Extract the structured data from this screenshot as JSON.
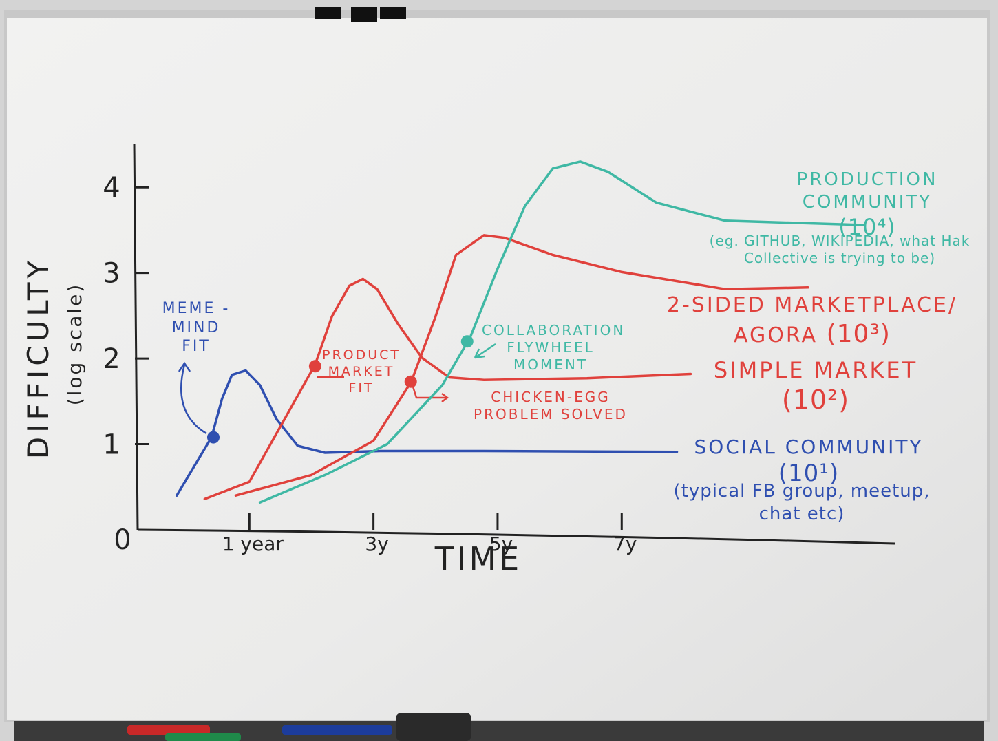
{
  "chart_data": {
    "type": "line",
    "y_label": "DIFFICULTY",
    "y_label_sub": "(log scale)",
    "x_label": "TIME",
    "xlim": [
      -0.8,
      11.4
    ],
    "ylim": [
      0,
      4.5
    ],
    "xticks": [
      {
        "value": 1,
        "label": "1 year"
      },
      {
        "value": 3,
        "label": "3y"
      },
      {
        "value": 5,
        "label": "5y"
      },
      {
        "value": 7,
        "label": "7y"
      }
    ],
    "yticks": [
      0,
      1,
      2,
      3,
      4
    ],
    "series": [
      {
        "name": "SOCIAL COMMUNITY",
        "scale_label": "(10¹)",
        "note": "(typical FB group, meetup, chat etc)",
        "color": "#2f4fb0",
        "x": [
          -0.17,
          0.39,
          0.56,
          0.72,
          0.94,
          1.17,
          1.44,
          1.78,
          2.22,
          3.11,
          4.78,
          7.89
        ],
        "values": [
          0.4,
          1.08,
          1.53,
          1.81,
          1.86,
          1.69,
          1.29,
          0.98,
          0.9,
          0.92,
          0.92,
          0.91
        ]
      },
      {
        "name": "SIMPLE MARKET",
        "scale_label": "(10²)",
        "color": "#e0413c",
        "x": [
          0.28,
          1.0,
          2.06,
          2.33,
          2.61,
          2.83,
          3.06,
          3.39,
          3.78,
          4.22,
          4.78,
          6.44,
          8.11
        ],
        "values": [
          0.36,
          0.56,
          1.93,
          2.49,
          2.85,
          2.93,
          2.81,
          2.41,
          2.01,
          1.78,
          1.75,
          1.77,
          1.82
        ]
      },
      {
        "name": "2-SIDED MARKETPLACE/ AGORA",
        "scale_label": "(10³)",
        "color": "#e0413c",
        "x": [
          0.78,
          2.0,
          3.0,
          3.61,
          4.0,
          4.33,
          4.78,
          5.11,
          5.89,
          7.0,
          8.67,
          10.0
        ],
        "values": [
          0.4,
          0.64,
          1.04,
          1.73,
          2.49,
          3.21,
          3.44,
          3.41,
          3.21,
          3.01,
          2.81,
          2.83
        ]
      },
      {
        "name": "PRODUCTION COMMUNITY",
        "scale_label": "(10⁴)",
        "note": "(eg. GITHUB, WIKIPEDIA, what Hak Collective is trying to be)",
        "color": "#3fb8a4",
        "x": [
          1.17,
          2.22,
          3.22,
          4.11,
          4.56,
          5.0,
          5.44,
          5.89,
          6.33,
          6.78,
          7.56,
          8.67,
          10.89
        ],
        "values": [
          0.32,
          0.64,
          1.0,
          1.69,
          2.25,
          3.05,
          3.78,
          4.22,
          4.3,
          4.18,
          3.82,
          3.61,
          3.56
        ]
      }
    ],
    "annotations": [
      {
        "text": "MEME -MIND FIT",
        "x": 0.42,
        "y": 1.08,
        "color": "#2f4fb0"
      },
      {
        "text": "PRODUCT MARKET FIT",
        "x": 2.06,
        "y": 1.91,
        "color": "#e0413c"
      },
      {
        "text": "CHICKEN-EGG PROBLEM SOLVED",
        "x": 3.6,
        "y": 1.73,
        "color": "#e0413c"
      },
      {
        "text": "COLLABORATION FLYWHEEL MOMENT",
        "x": 4.51,
        "y": 2.2,
        "color": "#3fb8a4"
      }
    ]
  }
}
